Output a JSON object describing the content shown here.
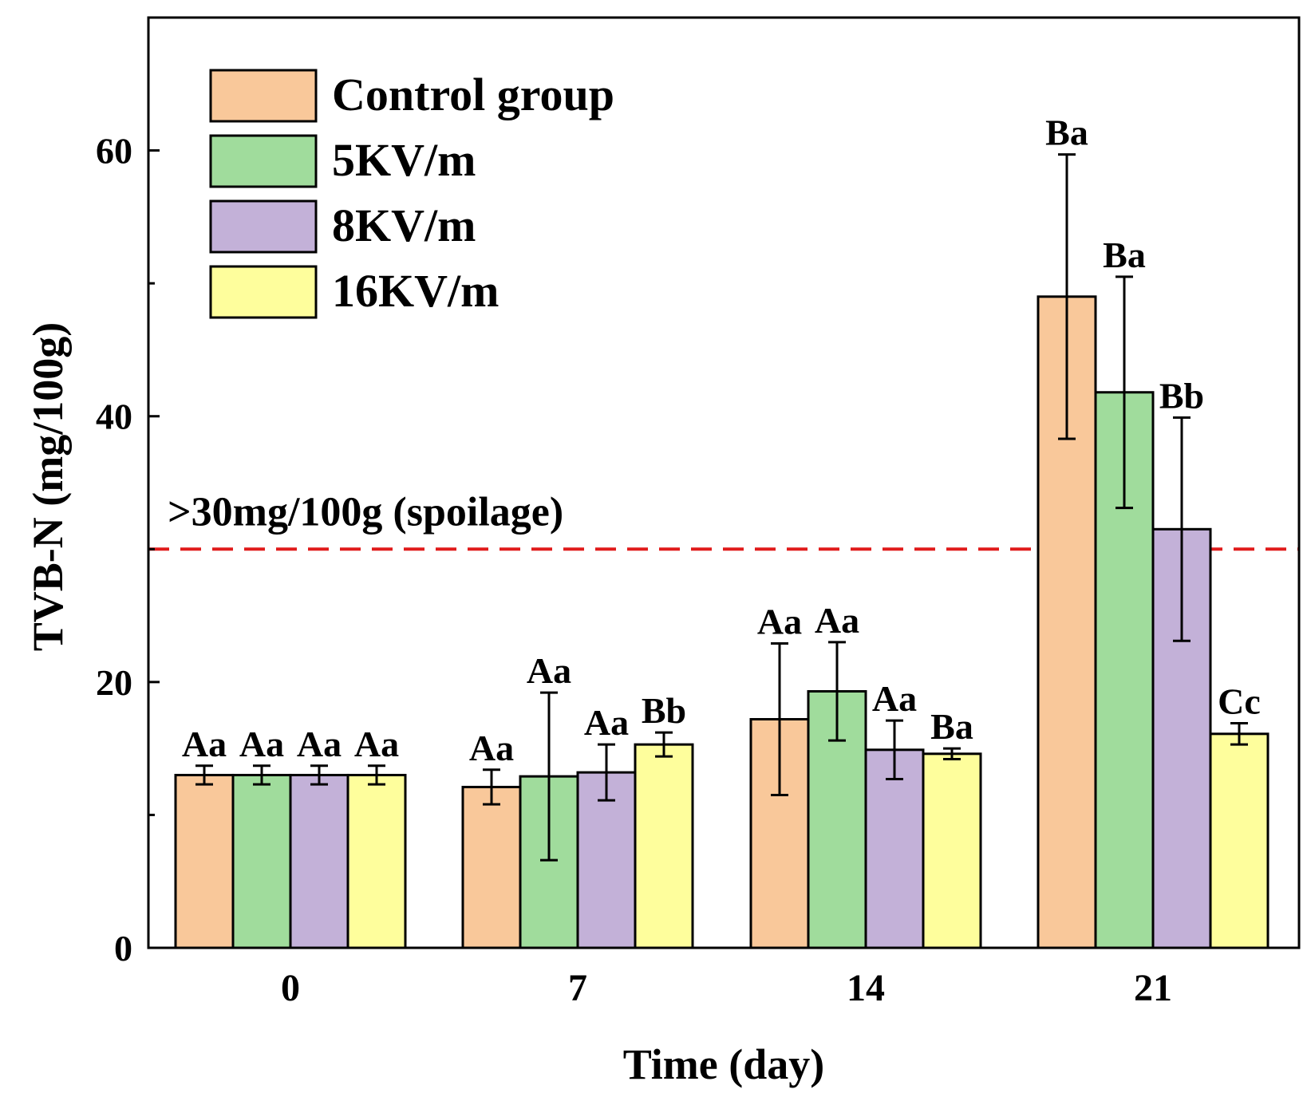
{
  "chart_data": {
    "type": "bar",
    "title": "",
    "xlabel": "Time (day)",
    "ylabel": "TVB-N (mg/100g)",
    "ylim": [
      0,
      70
    ],
    "yticks": [
      0,
      20,
      40,
      60
    ],
    "categories": [
      "0",
      "7",
      "14",
      "21"
    ],
    "series": [
      {
        "name": "Control group",
        "color": "#f9c89a",
        "values": [
          13.0,
          12.1,
          17.2,
          49.0
        ],
        "errors": [
          0.7,
          1.3,
          5.7,
          10.7
        ],
        "letters": [
          "Aa",
          "Aa",
          "Aa",
          "Ba"
        ]
      },
      {
        "name": "5KV/m",
        "color": "#a0dc9c",
        "values": [
          13.0,
          12.9,
          19.3,
          41.8
        ],
        "errors": [
          0.7,
          6.3,
          3.7,
          8.7
        ],
        "letters": [
          "Aa",
          "Aa",
          "Aa",
          "Ba"
        ]
      },
      {
        "name": "8KV/m",
        "color": "#c3b1d8",
        "values": [
          13.0,
          13.2,
          14.9,
          31.5
        ],
        "errors": [
          0.7,
          2.1,
          2.2,
          8.4
        ],
        "letters": [
          "Aa",
          "Aa",
          "Aa",
          "Bb"
        ]
      },
      {
        "name": "16KV/m",
        "color": "#fefe9c",
        "values": [
          13.0,
          15.3,
          14.6,
          16.1
        ],
        "errors": [
          0.7,
          0.9,
          0.4,
          0.8
        ],
        "letters": [
          "Aa",
          "Bb",
          "Ba",
          "Cc"
        ]
      }
    ],
    "threshold": {
      "value": 30,
      "label": ">30mg/100g (spoilage)",
      "color": "#e01b1b"
    },
    "legend_position": "top-left"
  }
}
